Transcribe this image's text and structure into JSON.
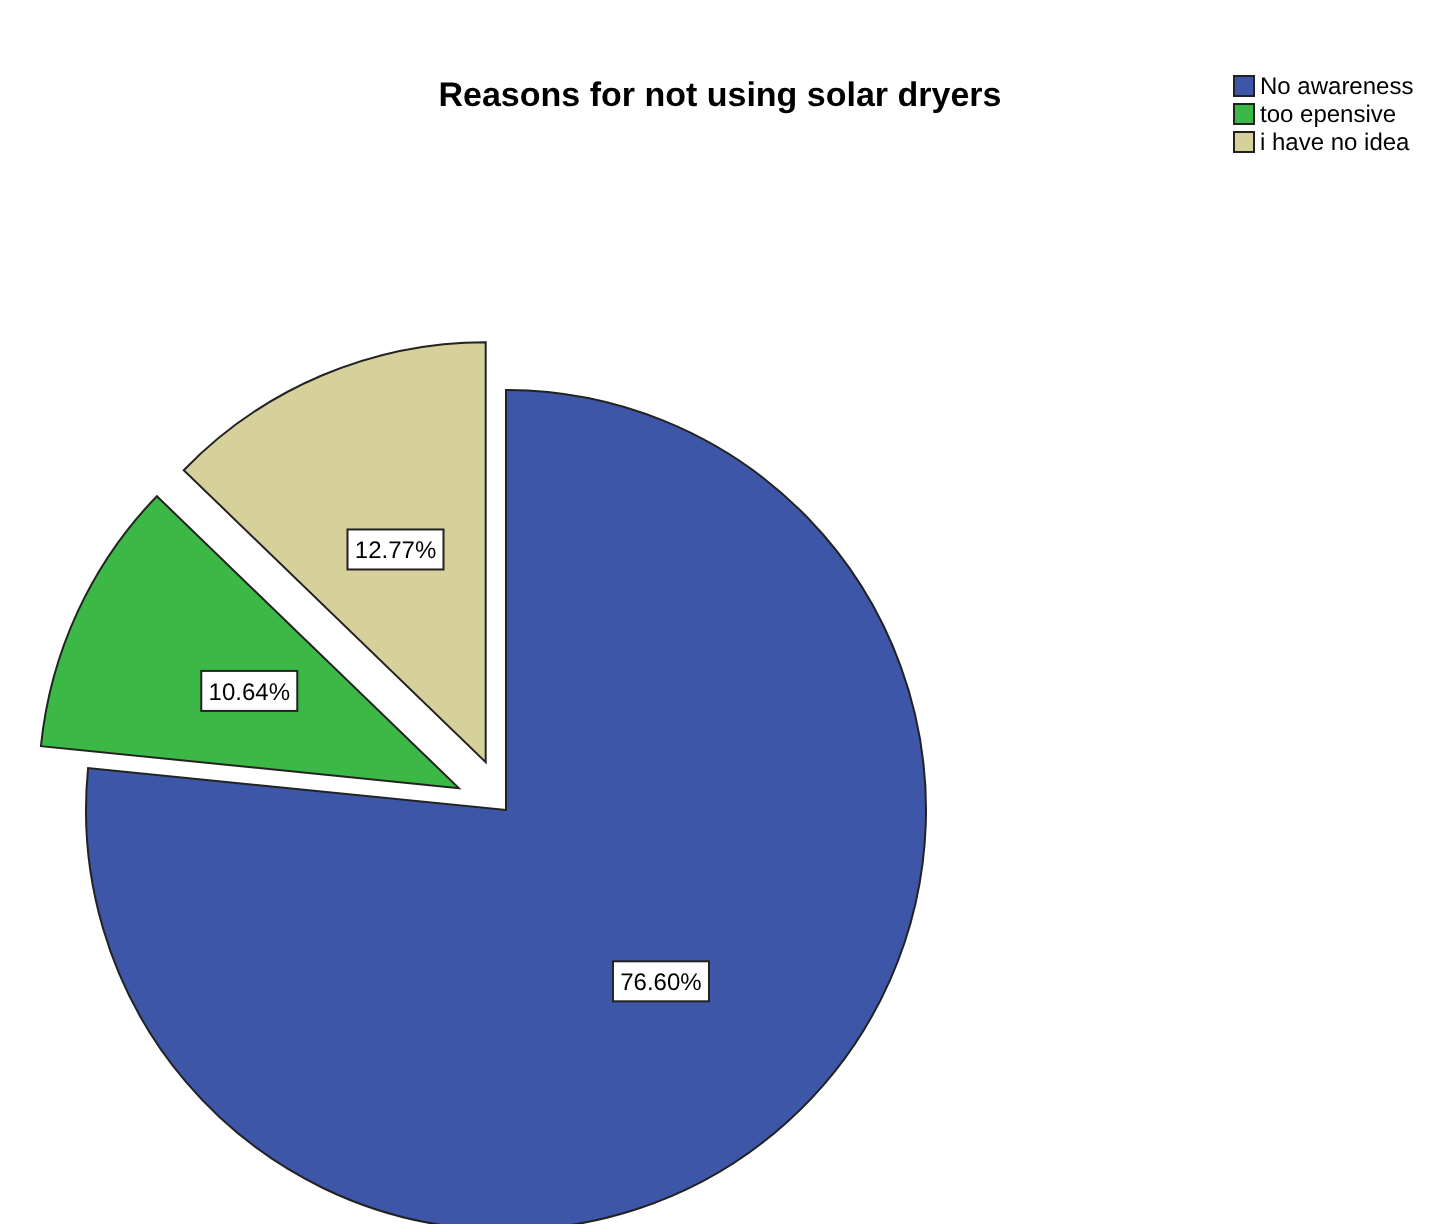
{
  "chart_data": {
    "type": "pie",
    "title": "Reasons for not using solar dryers",
    "categories": [
      "No awareness",
      "too epensive",
      "i have no idea"
    ],
    "values": [
      76.6,
      10.64,
      12.77
    ],
    "colors": [
      "#3e56a8",
      "#3cb846",
      "#d6d09a"
    ],
    "value_labels": [
      "76.60%",
      "10.64%",
      "12.77%"
    ],
    "legend": "top right"
  }
}
